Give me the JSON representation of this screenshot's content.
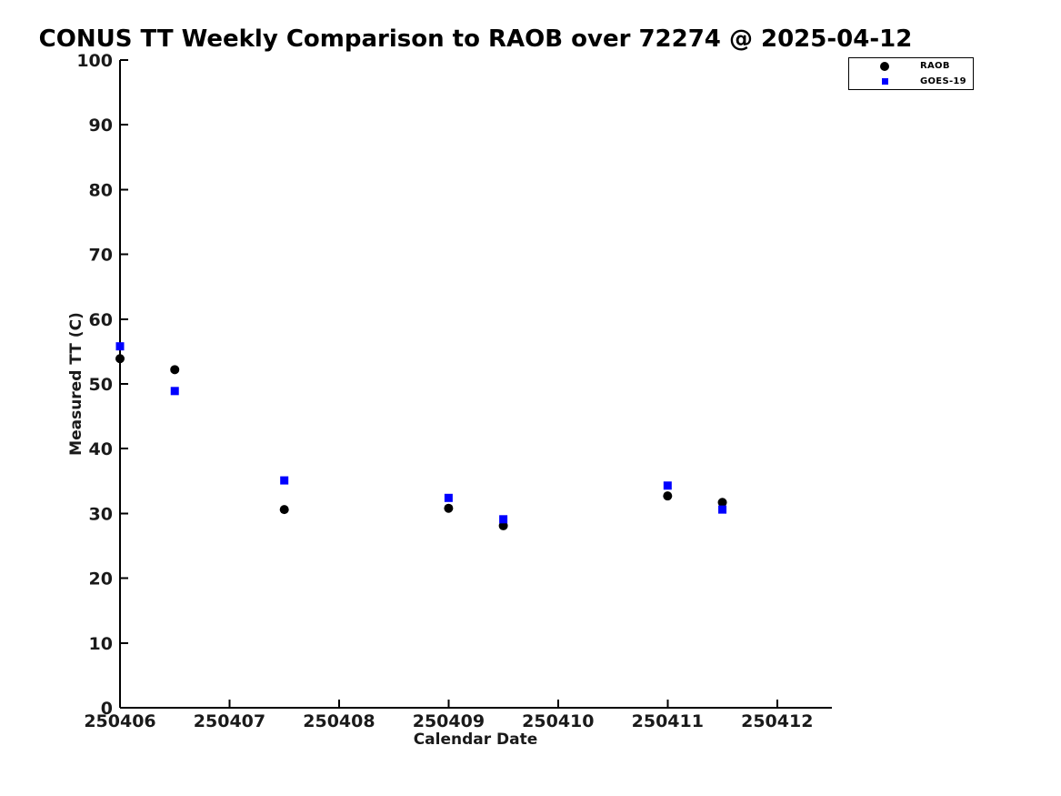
{
  "chart_data": {
    "type": "scatter",
    "title": "CONUS TT Weekly Comparison to RAOB over 72274 @ 2025-04-12",
    "xlabel": "Calendar Date",
    "ylabel": "Measured TT (C)",
    "xlim": [
      250406,
      250412.5
    ],
    "ylim": [
      0,
      100
    ],
    "x_ticks": [
      250406,
      250407,
      250408,
      250409,
      250410,
      250411,
      250412
    ],
    "y_ticks": [
      0,
      10,
      20,
      30,
      40,
      50,
      60,
      70,
      80,
      90,
      100
    ],
    "grid": false,
    "legend_position": "upper-right-outside-plot",
    "x": [
      250406,
      250406.5,
      250407.5,
      250409,
      250409.5,
      250411,
      250411.5
    ],
    "series": [
      {
        "name": "RAOB",
        "marker": "circle",
        "color": "#000000",
        "values": [
          53.9,
          52.2,
          30.6,
          30.8,
          28.1,
          32.7,
          31.7
        ]
      },
      {
        "name": "GOES-19",
        "marker": "square",
        "color": "#0000ff",
        "values": [
          55.8,
          48.9,
          35.1,
          32.4,
          29.1,
          34.3,
          30.6
        ]
      }
    ]
  }
}
